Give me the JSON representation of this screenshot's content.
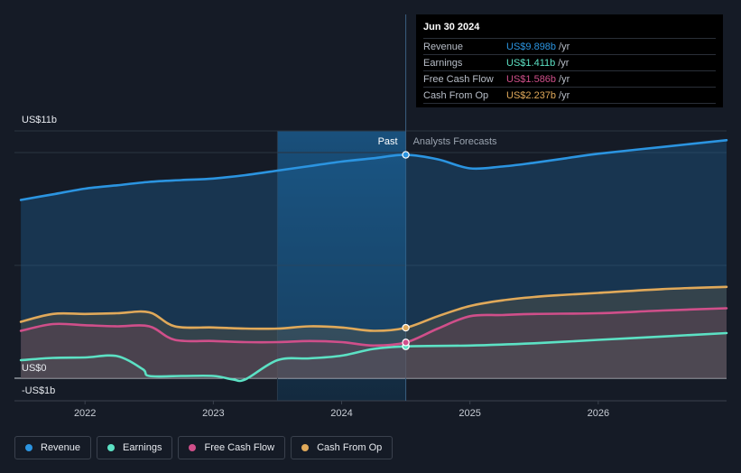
{
  "chart_data": {
    "type": "area",
    "x_range": [
      2021.45,
      2027.0
    ],
    "y_range": [
      -1,
      11
    ],
    "y_axis_labels": [
      {
        "label": "US$11b",
        "value": 11
      },
      {
        "label": "US$0",
        "value": 0
      },
      {
        "label": "-US$1b",
        "value": -1
      }
    ],
    "x_ticks": [
      "2022",
      "2023",
      "2024",
      "2025",
      "2026"
    ],
    "x_tick_values": [
      2022,
      2023,
      2024,
      2025,
      2026
    ],
    "past_label": "Past",
    "forecast_label": "Analysts Forecasts",
    "forecast_start": 2024.5,
    "highlight_start": 2023.5,
    "series": [
      {
        "name": "Revenue",
        "color": "#2b94e0",
        "points": [
          [
            2021.5,
            7.9
          ],
          [
            2021.75,
            8.15
          ],
          [
            2022.0,
            8.4
          ],
          [
            2022.25,
            8.55
          ],
          [
            2022.5,
            8.7
          ],
          [
            2022.75,
            8.78
          ],
          [
            2023.0,
            8.85
          ],
          [
            2023.25,
            9.0
          ],
          [
            2023.5,
            9.2
          ],
          [
            2023.75,
            9.4
          ],
          [
            2024.0,
            9.6
          ],
          [
            2024.25,
            9.75
          ],
          [
            2024.5,
            9.898
          ],
          [
            2024.75,
            9.7
          ],
          [
            2025.0,
            9.3
          ],
          [
            2025.25,
            9.38
          ],
          [
            2025.5,
            9.55
          ],
          [
            2025.75,
            9.75
          ],
          [
            2026.0,
            9.95
          ],
          [
            2026.5,
            10.25
          ],
          [
            2027.0,
            10.55
          ]
        ]
      },
      {
        "name": "Earnings",
        "color": "#5ce1c4",
        "points": [
          [
            2021.5,
            0.8
          ],
          [
            2021.75,
            0.9
          ],
          [
            2022.0,
            0.92
          ],
          [
            2022.25,
            0.98
          ],
          [
            2022.45,
            0.4
          ],
          [
            2022.5,
            0.1
          ],
          [
            2022.75,
            0.1
          ],
          [
            2023.0,
            0.1
          ],
          [
            2023.15,
            -0.05
          ],
          [
            2023.25,
            -0.05
          ],
          [
            2023.5,
            0.8
          ],
          [
            2023.75,
            0.88
          ],
          [
            2024.0,
            1.0
          ],
          [
            2024.25,
            1.3
          ],
          [
            2024.5,
            1.411
          ],
          [
            2025.0,
            1.45
          ],
          [
            2025.5,
            1.55
          ],
          [
            2026.0,
            1.7
          ],
          [
            2026.5,
            1.85
          ],
          [
            2027.0,
            2.0
          ]
        ]
      },
      {
        "name": "Free Cash Flow",
        "color": "#d04f8a",
        "points": [
          [
            2021.5,
            2.1
          ],
          [
            2021.75,
            2.4
          ],
          [
            2022.0,
            2.35
          ],
          [
            2022.25,
            2.3
          ],
          [
            2022.5,
            2.3
          ],
          [
            2022.7,
            1.7
          ],
          [
            2023.0,
            1.65
          ],
          [
            2023.25,
            1.6
          ],
          [
            2023.5,
            1.6
          ],
          [
            2023.75,
            1.65
          ],
          [
            2024.0,
            1.6
          ],
          [
            2024.25,
            1.45
          ],
          [
            2024.5,
            1.586
          ],
          [
            2024.75,
            2.2
          ],
          [
            2025.0,
            2.75
          ],
          [
            2025.25,
            2.8
          ],
          [
            2025.5,
            2.85
          ],
          [
            2026.0,
            2.88
          ],
          [
            2026.5,
            3.0
          ],
          [
            2027.0,
            3.1
          ]
        ]
      },
      {
        "name": "Cash From Op",
        "color": "#e0a95a",
        "points": [
          [
            2021.5,
            2.5
          ],
          [
            2021.75,
            2.85
          ],
          [
            2022.0,
            2.85
          ],
          [
            2022.25,
            2.88
          ],
          [
            2022.5,
            2.92
          ],
          [
            2022.7,
            2.3
          ],
          [
            2023.0,
            2.25
          ],
          [
            2023.25,
            2.2
          ],
          [
            2023.5,
            2.2
          ],
          [
            2023.75,
            2.3
          ],
          [
            2024.0,
            2.25
          ],
          [
            2024.25,
            2.1
          ],
          [
            2024.5,
            2.237
          ],
          [
            2024.75,
            2.75
          ],
          [
            2025.0,
            3.2
          ],
          [
            2025.25,
            3.45
          ],
          [
            2025.5,
            3.6
          ],
          [
            2025.75,
            3.7
          ],
          [
            2026.0,
            3.78
          ],
          [
            2026.5,
            3.95
          ],
          [
            2027.0,
            4.05
          ]
        ]
      }
    ]
  },
  "tooltip": {
    "date": "Jun 30 2024",
    "unit": "/yr",
    "rows": [
      {
        "label": "Revenue",
        "value": "US$9.898b",
        "color": "#2b94e0"
      },
      {
        "label": "Earnings",
        "value": "US$1.411b",
        "color": "#5ce1c4"
      },
      {
        "label": "Free Cash Flow",
        "value": "US$1.586b",
        "color": "#d04f8a"
      },
      {
        "label": "Cash From Op",
        "value": "US$2.237b",
        "color": "#e0a95a"
      }
    ]
  },
  "legend": [
    {
      "label": "Revenue",
      "color": "#2b94e0"
    },
    {
      "label": "Earnings",
      "color": "#5ce1c4"
    },
    {
      "label": "Free Cash Flow",
      "color": "#d04f8a"
    },
    {
      "label": "Cash From Op",
      "color": "#e0a95a"
    }
  ]
}
